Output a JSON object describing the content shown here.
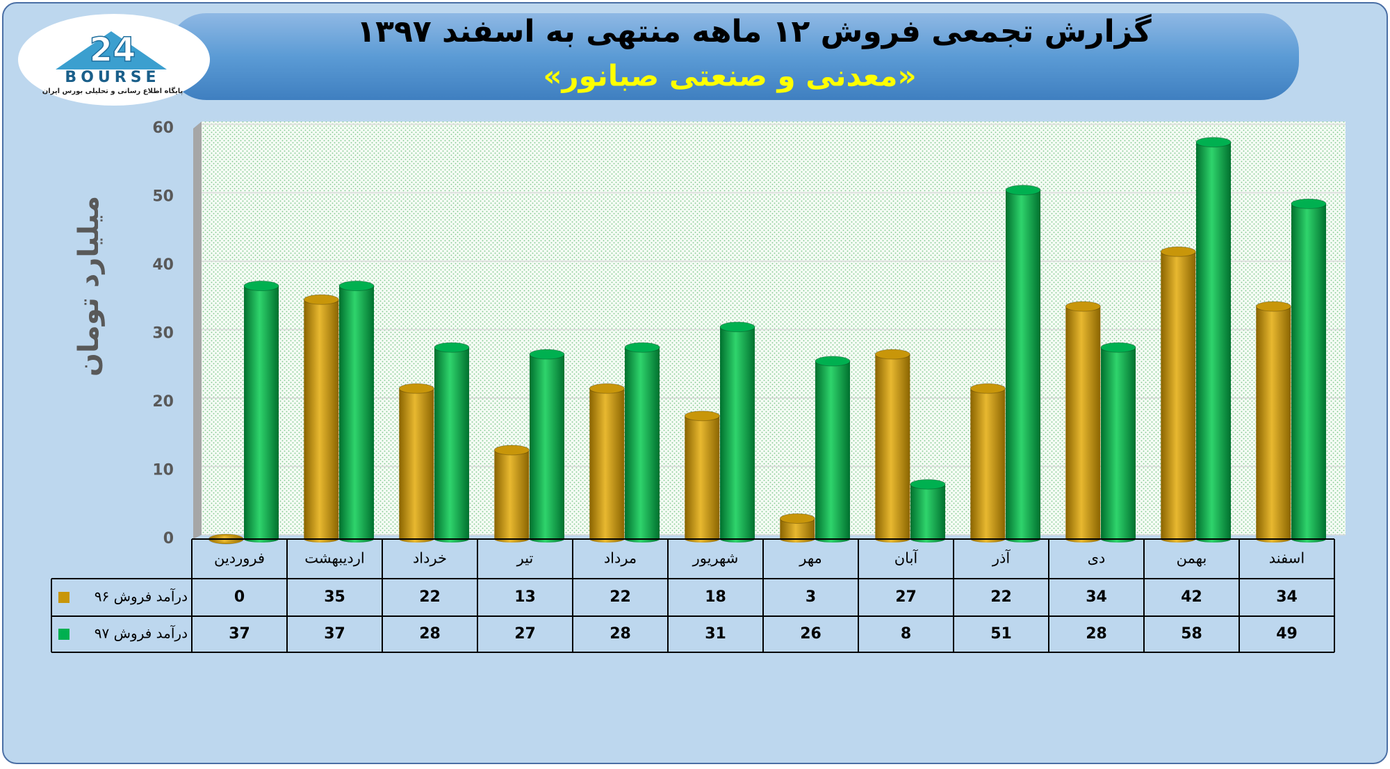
{
  "chart_data": {
    "type": "bar",
    "title": "گزارش تجمعی فروش ۱۲ ماهه منتهی به اسفند ۱۳۹۷",
    "subtitle": "«معدنی و صنعتی صبانور»",
    "logo": {
      "number": "24",
      "brand": "BOURSE",
      "tagline": "پایگاه اطلاع رسانی و تحلیلی بورس ایران"
    },
    "y_label": "میلیارد تومان",
    "categories": [
      "فروردین",
      "اردیبهشت",
      "خرداد",
      "تیر",
      "مرداد",
      "شهریور",
      "مهر",
      "آبان",
      "آذر",
      "دی",
      "بهمن",
      "اسفند"
    ],
    "series": [
      {
        "name": "درآمد فروش ۹۶",
        "color": "#c8960a",
        "values": [
          0,
          35,
          22,
          13,
          22,
          18,
          3,
          27,
          22,
          34,
          42,
          34
        ]
      },
      {
        "name": "درآمد فروش ۹۷",
        "color": "#00b050",
        "values": [
          37,
          37,
          28,
          27,
          28,
          31,
          26,
          8,
          51,
          28,
          58,
          49
        ]
      }
    ],
    "ylim": [
      0,
      60
    ],
    "yticks": [
      0,
      10,
      20,
      30,
      40,
      50,
      60
    ],
    "grid": true
  }
}
